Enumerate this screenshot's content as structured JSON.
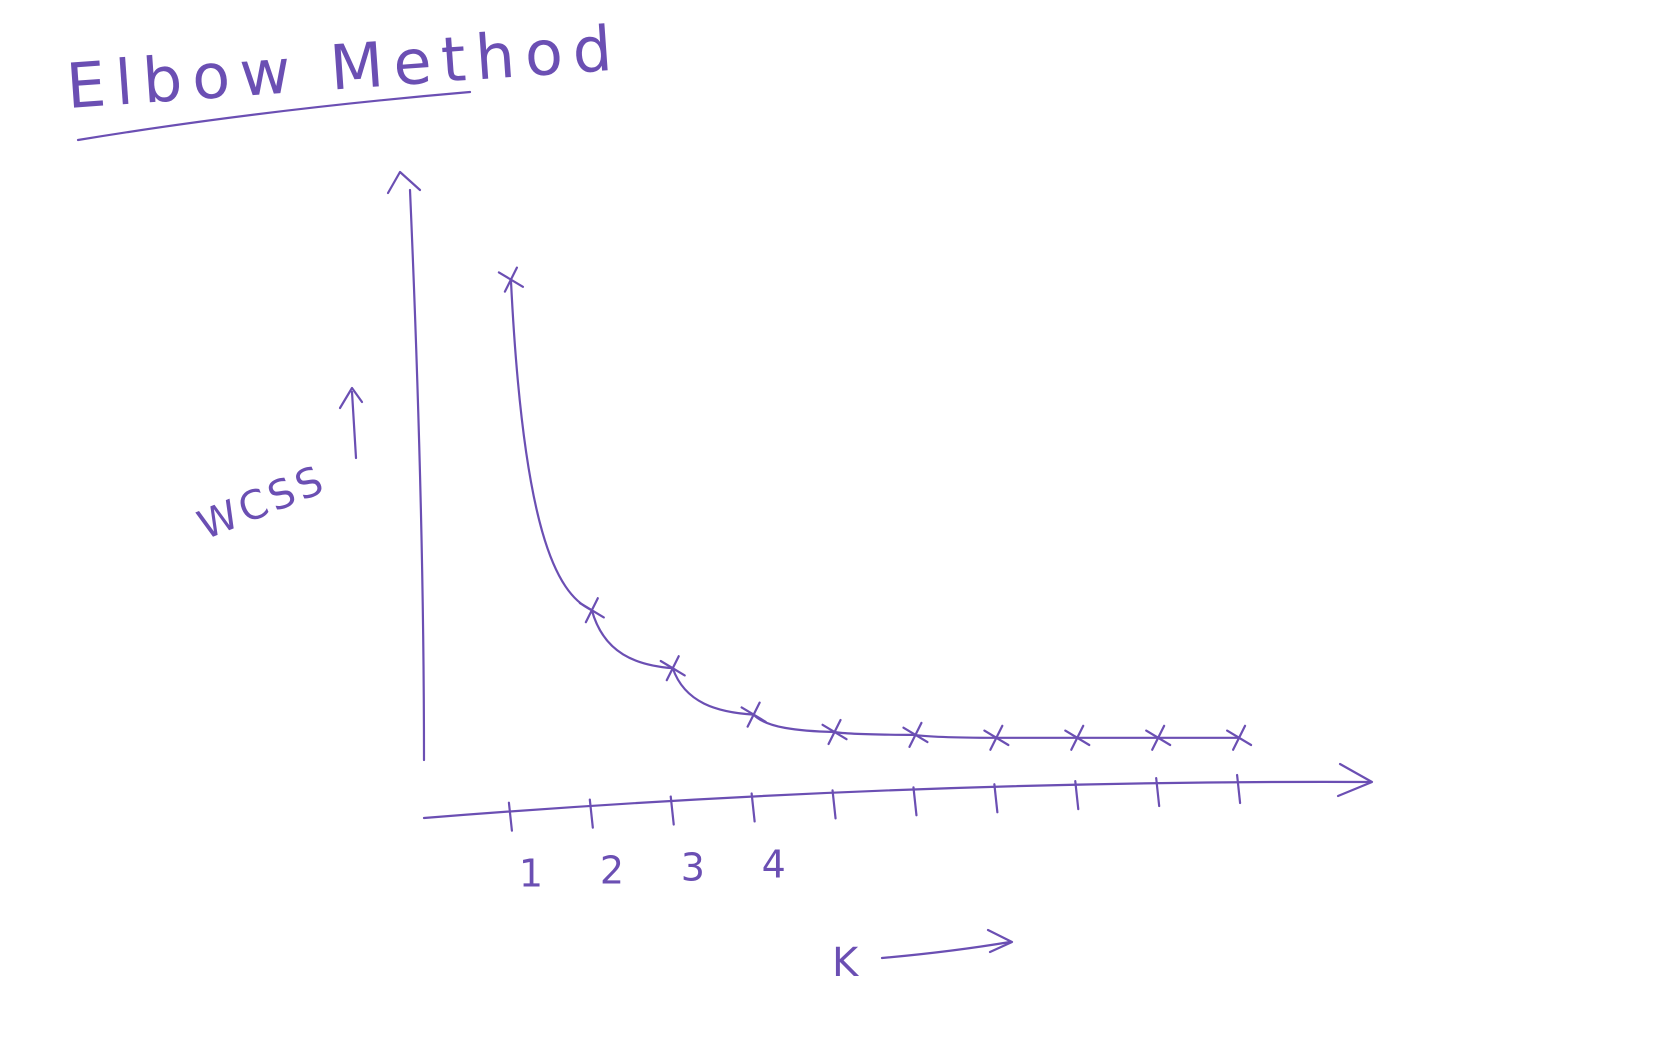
{
  "chart_data": {
    "type": "line",
    "title": "Elbow Method",
    "xlabel": "K",
    "ylabel": "WCSS",
    "x": [
      1,
      2,
      3,
      4,
      5,
      6,
      7,
      8,
      9,
      10
    ],
    "tick_labels": [
      "1",
      "2",
      "3",
      "4"
    ],
    "series": [
      {
        "values": [
          88,
          31,
          21,
          13,
          10,
          9.5,
          9,
          9,
          9,
          9
        ]
      }
    ],
    "xlim": [
      0,
      11
    ],
    "ylim": [
      0,
      100
    ],
    "grid": false,
    "legend": "none",
    "color": "#6b4fb3"
  }
}
